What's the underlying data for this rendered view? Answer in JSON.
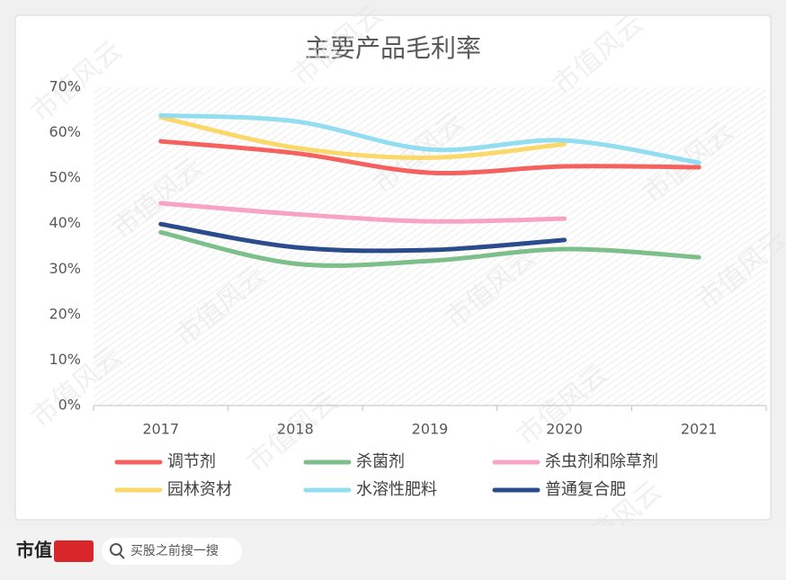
{
  "chart_data": {
    "type": "line",
    "title": "主要产品毛利率",
    "categories": [
      "2017",
      "2018",
      "2019",
      "2020",
      "2021"
    ],
    "series": [
      {
        "name": "调节剂",
        "color": "#f4615f",
        "values": [
          58.1,
          55.5,
          51.2,
          52.6,
          52.4
        ]
      },
      {
        "name": "杀菌剂",
        "color": "#7dbf8a",
        "values": [
          38.1,
          31.2,
          31.8,
          34.4,
          32.6
        ]
      },
      {
        "name": "杀虫剂和除草剂",
        "color": "#f7a3c3",
        "values": [
          44.5,
          42.1,
          40.5,
          41.1,
          null
        ]
      },
      {
        "name": "园林资材",
        "color": "#fad96a",
        "values": [
          63.4,
          56.7,
          54.5,
          57.5,
          null
        ]
      },
      {
        "name": "水溶性肥料",
        "color": "#92def0",
        "values": [
          63.8,
          62.5,
          56.3,
          58.3,
          53.4
        ]
      },
      {
        "name": "普通复合肥",
        "color": "#2b4c8c",
        "values": [
          39.9,
          34.8,
          34.2,
          36.4,
          null
        ]
      }
    ],
    "ylim": [
      0,
      70
    ],
    "yticks": [
      {
        "value": 0,
        "label": "0%"
      },
      {
        "value": 10,
        "label": "10%"
      },
      {
        "value": 20,
        "label": "20%"
      },
      {
        "value": 30,
        "label": "30%"
      },
      {
        "value": 40,
        "label": "40%"
      },
      {
        "value": 50,
        "label": "50%"
      },
      {
        "value": 60,
        "label": "60%"
      },
      {
        "value": 70,
        "label": "70%"
      }
    ],
    "smooth": true,
    "legend": "bottom"
  },
  "watermark": "市值风云",
  "footer": {
    "brand": "市值",
    "search": "买股之前搜一搜"
  }
}
